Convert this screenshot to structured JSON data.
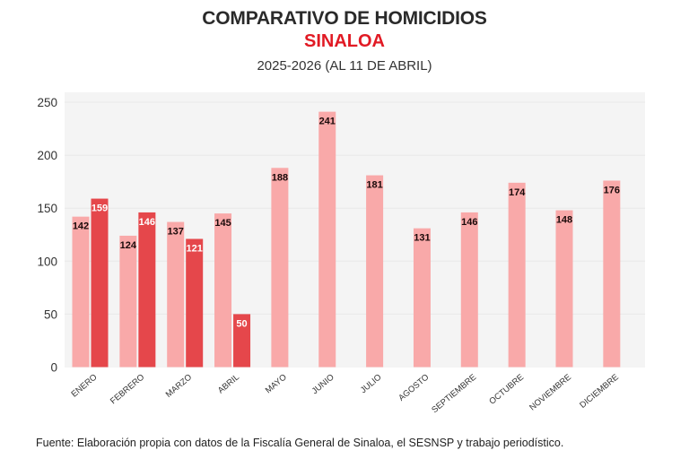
{
  "header": {
    "title": "COMPARATIVO DE HOMICIDIOS",
    "subtitle": "SINALOA",
    "period": "2025-2026 (AL 11 DE ABRIL)"
  },
  "footer": {
    "source": "Fuente: Elaboración propia con datos de la Fiscalía General de Sinaloa, el SESNSP y trabajo periodístico."
  },
  "chart_data": {
    "type": "bar",
    "title": "COMPARATIVO DE HOMICIDIOS SINALOA",
    "subtitle": "2025-2026 (AL 11 DE ABRIL)",
    "xlabel": "",
    "ylabel": "",
    "ylim": [
      0,
      250
    ],
    "yticks": [
      0,
      50,
      100,
      150,
      200,
      250
    ],
    "grid": true,
    "legend": "none",
    "categories": [
      "ENERO",
      "FEBRERO",
      "MARZO",
      "ABRIL",
      "MAYO",
      "JUNIO",
      "JULIO",
      "AGOSTO",
      "SEPTIEMBRE",
      "OCTUBRE",
      "NOVIEMBRE",
      "DICIEMBRE"
    ],
    "series": [
      {
        "name": "2025",
        "color": "#f9a9a9",
        "label_color": "#1a0a0a",
        "values": [
          142,
          124,
          137,
          145,
          188,
          241,
          181,
          131,
          146,
          174,
          148,
          176
        ]
      },
      {
        "name": "2026",
        "color": "#e5474b",
        "label_color": "#ffffff",
        "values": [
          159,
          146,
          121,
          50,
          null,
          null,
          null,
          null,
          null,
          null,
          null,
          null
        ]
      }
    ]
  },
  "colors": {
    "plot_background": "#f4f4f4",
    "gridline": "#e8e8e8",
    "title": "#2a2a2a",
    "accent": "#e11a24"
  }
}
